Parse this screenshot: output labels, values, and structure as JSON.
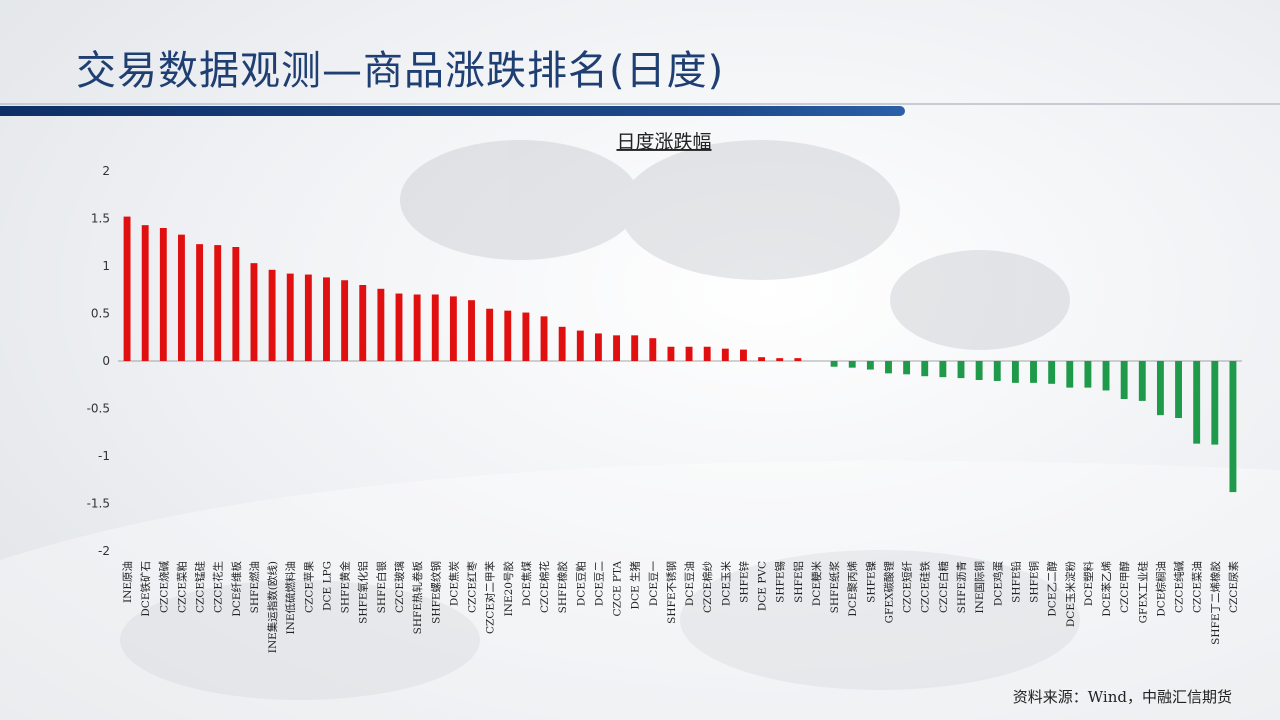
{
  "page": {
    "title": "交易数据观测—商品涨跌排名(日度)",
    "source": "资料来源：Wind，中融汇信期货"
  },
  "colors": {
    "up": "#e01010",
    "down": "#1f9a4a",
    "axis": "#888888"
  },
  "chart_data": {
    "type": "bar",
    "title": "日度涨跌幅",
    "xlabel": "",
    "ylabel": "",
    "ylim": [
      -2,
      2
    ],
    "yticks": [
      2,
      1.5,
      1,
      0.5,
      0,
      -0.5,
      -1,
      -1.5,
      -2
    ],
    "grid": false,
    "legend": "none",
    "categories": [
      "INE原油",
      "DCE铁矿石",
      "CZCE烧碱",
      "CZCE菜粕",
      "CZCE锰硅",
      "CZCE花生",
      "DCE纤维板",
      "SHFE燃油",
      "INE集运指数(欧线)",
      "INE低硫燃料油",
      "CZCE苹果",
      "DCE LPG",
      "SHFE黄金",
      "SHFE氧化铝",
      "SHFE白银",
      "CZCE玻璃",
      "SHFE热轧卷板",
      "SHFE螺纹钢",
      "DCE焦炭",
      "CZCE红枣",
      "CZCE对二甲苯",
      "INE20号胶",
      "DCE焦煤",
      "CZCE棉花",
      "SHFE橡胶",
      "DCE豆粕",
      "DCE豆二",
      "CZCE PTA",
      "DCE 生猪",
      "DCE豆一",
      "SHFE不锈钢",
      "DCE豆油",
      "CZCE棉纱",
      "DCE玉米",
      "SHFE锌",
      "DCE PVC",
      "SHFE锡",
      "SHFE铝",
      "DCE粳米",
      "SHFE纸浆",
      "DCE聚丙烯",
      "SHFE镍",
      "GFEX碳酸锂",
      "CZCE短纤",
      "CZCE硅铁",
      "CZCE白糖",
      "SHFE沥青",
      "INE国际铜",
      "DCE鸡蛋",
      "SHFE铅",
      "SHFE铜",
      "DCE乙二醇",
      "DCE玉米淀粉",
      "DCE塑料",
      "DCE苯乙烯",
      "CZCE甲醇",
      "GFEX工业硅",
      "DCE棕榈油",
      "CZCE纯碱",
      "CZCE菜油",
      "SHFE丁二烯橡胶",
      "CZCE尿素"
    ],
    "values": [
      1.52,
      1.43,
      1.4,
      1.33,
      1.23,
      1.22,
      1.2,
      1.03,
      0.96,
      0.92,
      0.91,
      0.88,
      0.85,
      0.8,
      0.76,
      0.71,
      0.7,
      0.7,
      0.68,
      0.64,
      0.55,
      0.53,
      0.51,
      0.47,
      0.36,
      0.32,
      0.29,
      0.27,
      0.27,
      0.24,
      0.15,
      0.15,
      0.15,
      0.13,
      0.12,
      0.04,
      0.03,
      0.03,
      0.0,
      -0.06,
      -0.07,
      -0.09,
      -0.13,
      -0.14,
      -0.16,
      -0.17,
      -0.18,
      -0.2,
      -0.21,
      -0.23,
      -0.23,
      -0.24,
      -0.28,
      -0.28,
      -0.31,
      -0.4,
      -0.42,
      -0.57,
      -0.6,
      -0.87,
      -0.88,
      -1.38
    ]
  }
}
